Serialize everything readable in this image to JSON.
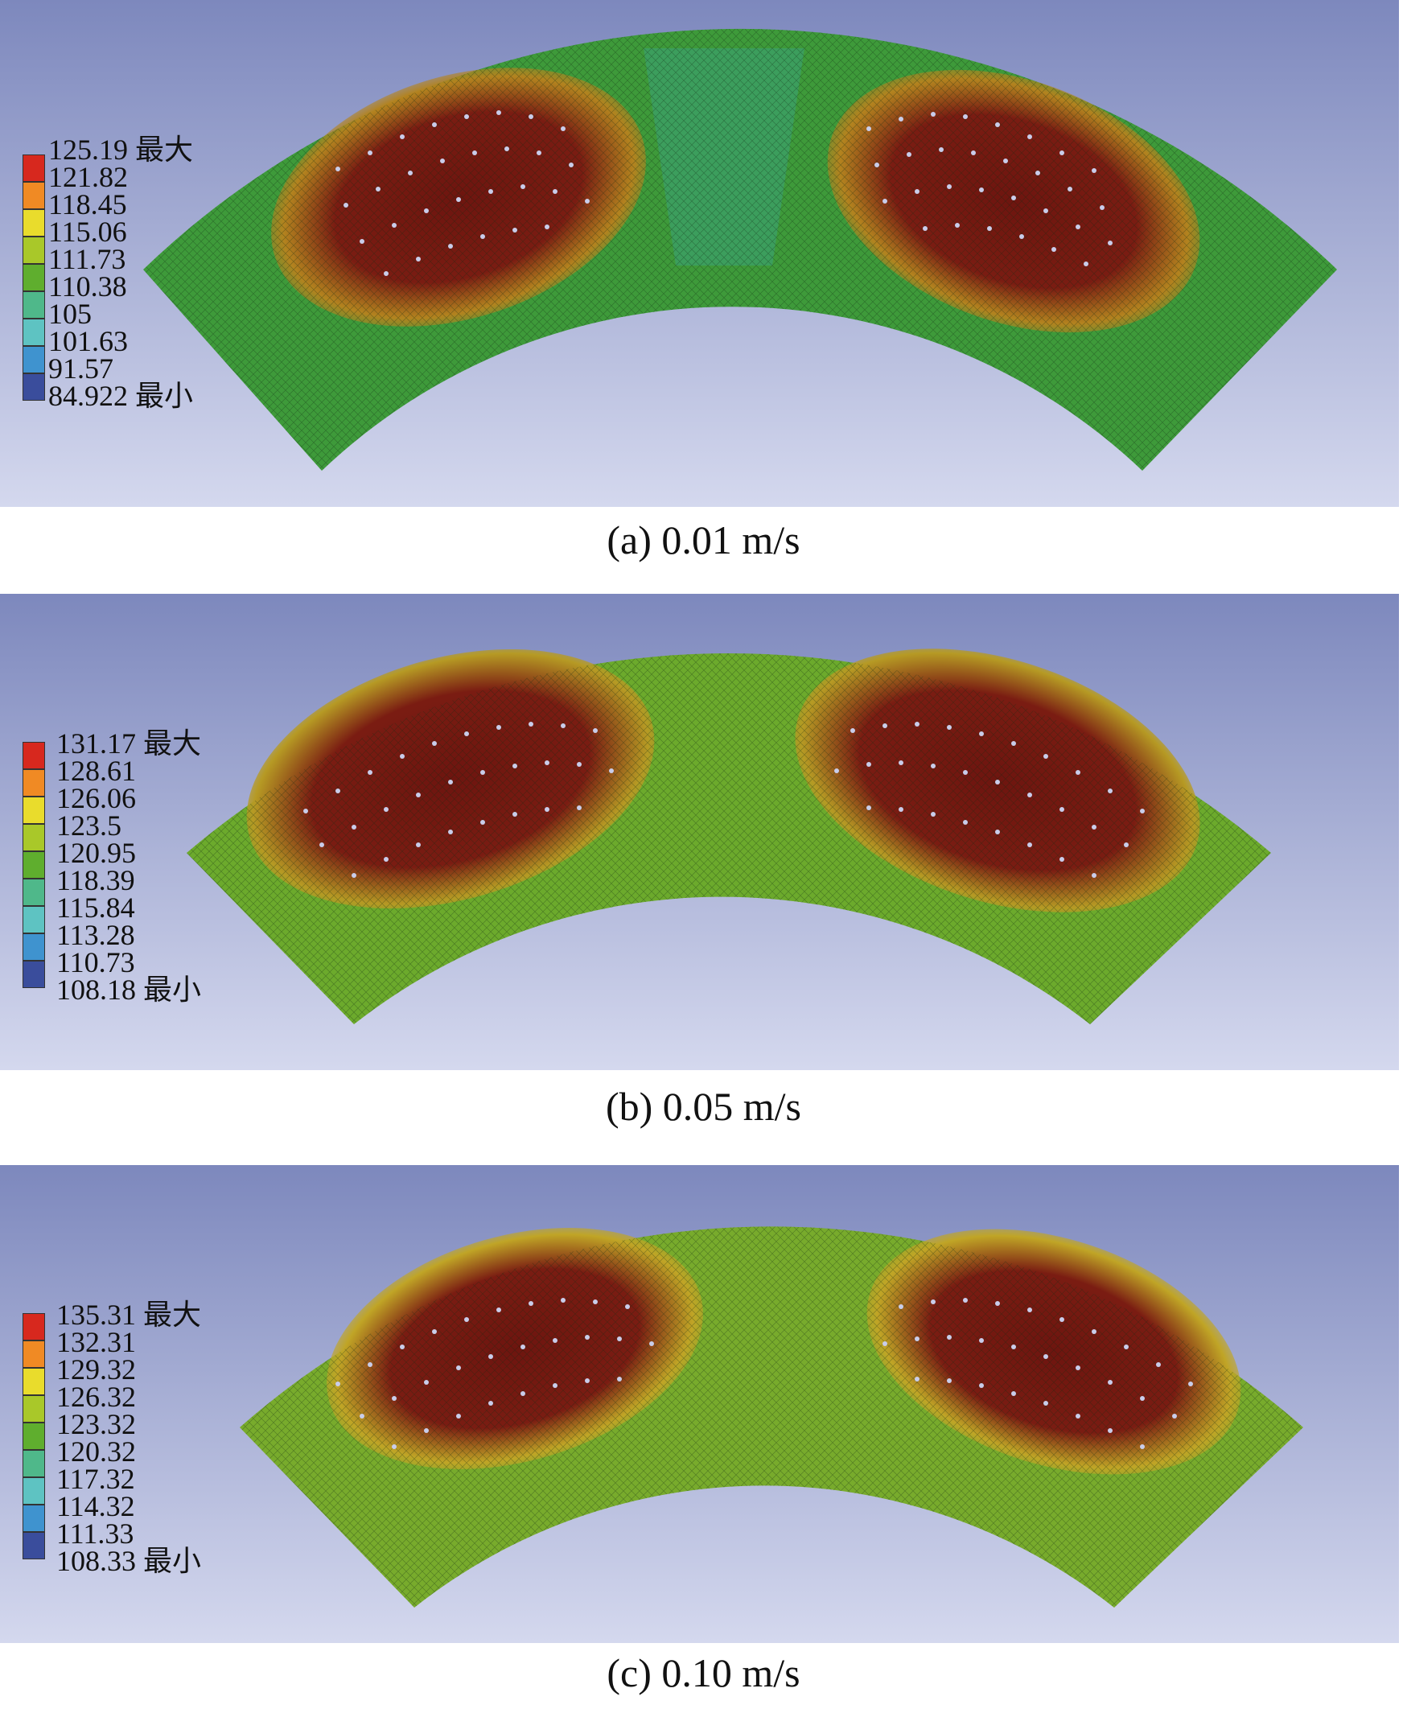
{
  "panels": [
    {
      "id": "a",
      "caption": "(a) 0.01 m/s",
      "legend": {
        "values": [
          "125.19",
          "121.82",
          "118.45",
          "115.06",
          "111.73",
          "110.38",
          "105",
          "101.63",
          "91.57",
          "84.922"
        ],
        "max_label": "最大",
        "min_label": "最小"
      }
    },
    {
      "id": "b",
      "caption": "(b) 0.05 m/s",
      "legend": {
        "values": [
          "131.17",
          "128.61",
          "126.06",
          "123.5",
          "120.95",
          "118.39",
          "115.84",
          "113.28",
          "110.73",
          "108.18"
        ],
        "max_label": "最大",
        "min_label": "最小"
      }
    },
    {
      "id": "c",
      "caption": "(c) 0.10 m/s",
      "legend": {
        "values": [
          "135.31",
          "132.31",
          "129.32",
          "126.32",
          "123.32",
          "120.32",
          "117.32",
          "114.32",
          "111.33",
          "108.33"
        ],
        "max_label": "最大",
        "min_label": "最小"
      }
    }
  ],
  "colors": {
    "legend_scale": [
      "#d7281e",
      "#f08a24",
      "#e9dc2c",
      "#a9c829",
      "#5fae2e",
      "#4fb88a",
      "#5ec3c2",
      "#3f93cf",
      "#3a4d9c"
    ],
    "background_top": "#7d88bd",
    "background_bottom": "#d4d8ee",
    "hot_zone": "#7a1a12",
    "warm_ring": "#b39a22",
    "mesh_base": "#3e9a3a"
  }
}
